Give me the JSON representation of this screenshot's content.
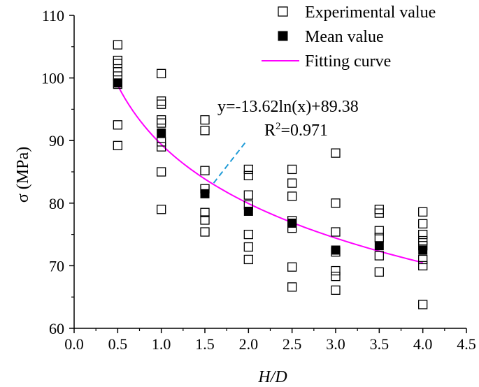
{
  "chart_data": {
    "type": "scatter",
    "xlabel": "H/D",
    "ylabel": "σ (MPa)",
    "xlim": [
      0,
      4.5
    ],
    "ylim": [
      60,
      110
    ],
    "x_ticks": [
      "0.0",
      "0.5",
      "1.0",
      "1.5",
      "2.0",
      "2.5",
      "3.0",
      "3.5",
      "4.0",
      "4.5"
    ],
    "y_ticks": [
      "60",
      "70",
      "80",
      "90",
      "100",
      "110"
    ],
    "grid": false,
    "legend_position": "top-right",
    "series": [
      {
        "name": "Experimental value",
        "marker": "hollow-square",
        "points": [
          [
            0.5,
            105.3
          ],
          [
            0.5,
            102.8
          ],
          [
            0.5,
            102.3
          ],
          [
            0.5,
            101.0
          ],
          [
            0.5,
            100.3
          ],
          [
            0.5,
            99.0
          ],
          [
            0.5,
            92.5
          ],
          [
            0.5,
            89.2
          ],
          [
            1.0,
            100.7
          ],
          [
            1.0,
            96.3
          ],
          [
            1.0,
            95.8
          ],
          [
            1.0,
            93.3
          ],
          [
            1.0,
            92.8
          ],
          [
            1.0,
            89.8
          ],
          [
            1.0,
            89.0
          ],
          [
            1.0,
            85.0
          ],
          [
            1.0,
            79.0
          ],
          [
            1.5,
            93.3
          ],
          [
            1.5,
            91.6
          ],
          [
            1.5,
            85.2
          ],
          [
            1.5,
            82.3
          ],
          [
            1.5,
            78.5
          ],
          [
            1.5,
            77.3
          ],
          [
            1.5,
            75.4
          ],
          [
            2.0,
            85.4
          ],
          [
            2.0,
            84.4
          ],
          [
            2.0,
            81.3
          ],
          [
            2.0,
            79.7
          ],
          [
            2.0,
            75.0
          ],
          [
            2.0,
            73.0
          ],
          [
            2.0,
            71.0
          ],
          [
            2.5,
            85.4
          ],
          [
            2.5,
            83.2
          ],
          [
            2.5,
            81.1
          ],
          [
            2.5,
            77.2
          ],
          [
            2.5,
            76.0
          ],
          [
            2.5,
            69.8
          ],
          [
            2.5,
            66.6
          ],
          [
            3.0,
            88.0
          ],
          [
            3.0,
            80.0
          ],
          [
            3.0,
            75.4
          ],
          [
            3.0,
            72.2
          ],
          [
            3.0,
            69.2
          ],
          [
            3.0,
            68.3
          ],
          [
            3.0,
            66.1
          ],
          [
            3.5,
            79.0
          ],
          [
            3.5,
            78.4
          ],
          [
            3.5,
            75.6
          ],
          [
            3.5,
            74.5
          ],
          [
            3.5,
            71.6
          ],
          [
            3.5,
            69.0
          ],
          [
            4.0,
            78.6
          ],
          [
            4.0,
            76.7
          ],
          [
            4.0,
            75.0
          ],
          [
            4.0,
            74.0
          ],
          [
            4.0,
            73.2
          ],
          [
            4.0,
            71.0
          ],
          [
            4.0,
            70.0
          ],
          [
            4.0,
            63.8
          ]
        ],
        "color": "#000000"
      },
      {
        "name": "Mean value",
        "marker": "filled-square",
        "x": [
          0.5,
          1.0,
          1.5,
          2.0,
          2.5,
          3.0,
          3.5,
          4.0
        ],
        "y": [
          99.2,
          91.2,
          81.5,
          78.7,
          76.8,
          72.5,
          73.2,
          72.5
        ],
        "color": "#000000"
      },
      {
        "name": "Fitting curve",
        "type": "line",
        "equation": "y = -13.62 ln(x) + 89.38",
        "a": -13.62,
        "b": 89.38,
        "x_range": [
          0.5,
          4.0
        ],
        "color": "#ff00ff"
      }
    ],
    "annotations": {
      "equation": "y=-13.62ln(x)+89.38",
      "r2_prefix": "R",
      "r2_sup": "2",
      "r2_value": "=0.971",
      "leader_color": "#1e9bd7",
      "leader_from": [
        1.6,
        83.2
      ],
      "leader_to": [
        1.97,
        89.8
      ]
    }
  }
}
